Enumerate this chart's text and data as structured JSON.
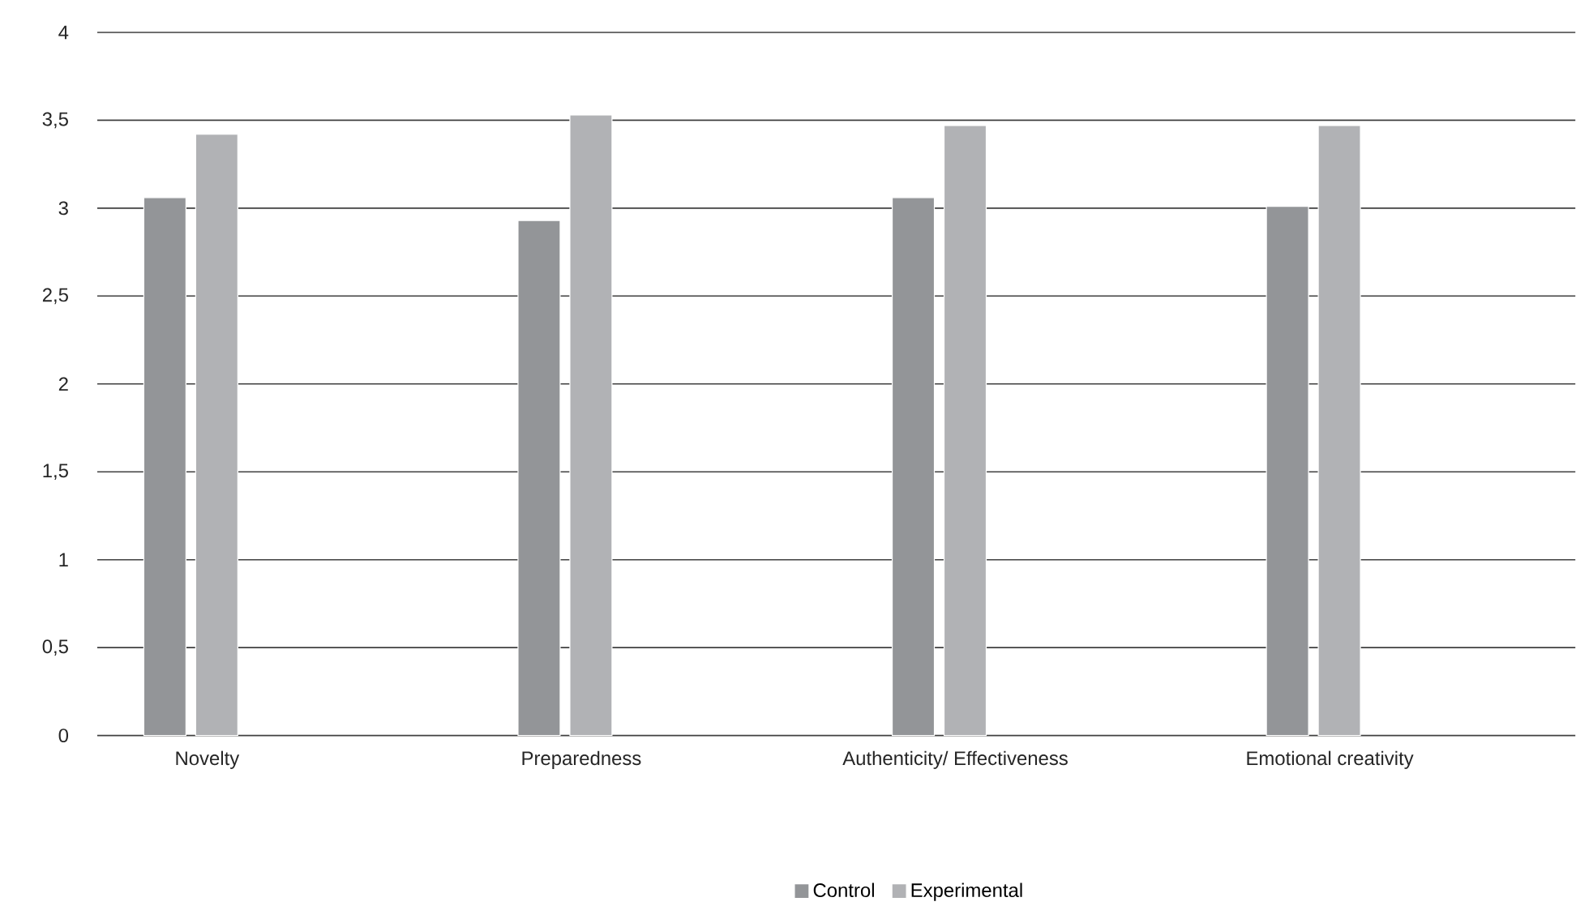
{
  "chart_data": {
    "type": "bar",
    "categories": [
      "Novelty",
      "Preparedness",
      "Authenticity/ Effectiveness",
      "Emotional creativity"
    ],
    "series": [
      {
        "name": "Control",
        "color": "#939598",
        "values": [
          3.06,
          2.93,
          3.06,
          3.01
        ]
      },
      {
        "name": "Experimental",
        "color": "#b1b2b5",
        "values": [
          3.42,
          3.53,
          3.47,
          3.47
        ]
      }
    ],
    "ylim": [
      0,
      4
    ],
    "yticks": [
      0,
      {
        "value": 0.5,
        "label": "0,5"
      },
      1,
      {
        "value": 1.5,
        "label": "1,5"
      },
      2,
      {
        "value": 2.5,
        "label": "2,5"
      },
      3,
      {
        "value": 3.5,
        "label": "3,5"
      },
      4
    ],
    "grid": "y",
    "legend": "bottom"
  }
}
